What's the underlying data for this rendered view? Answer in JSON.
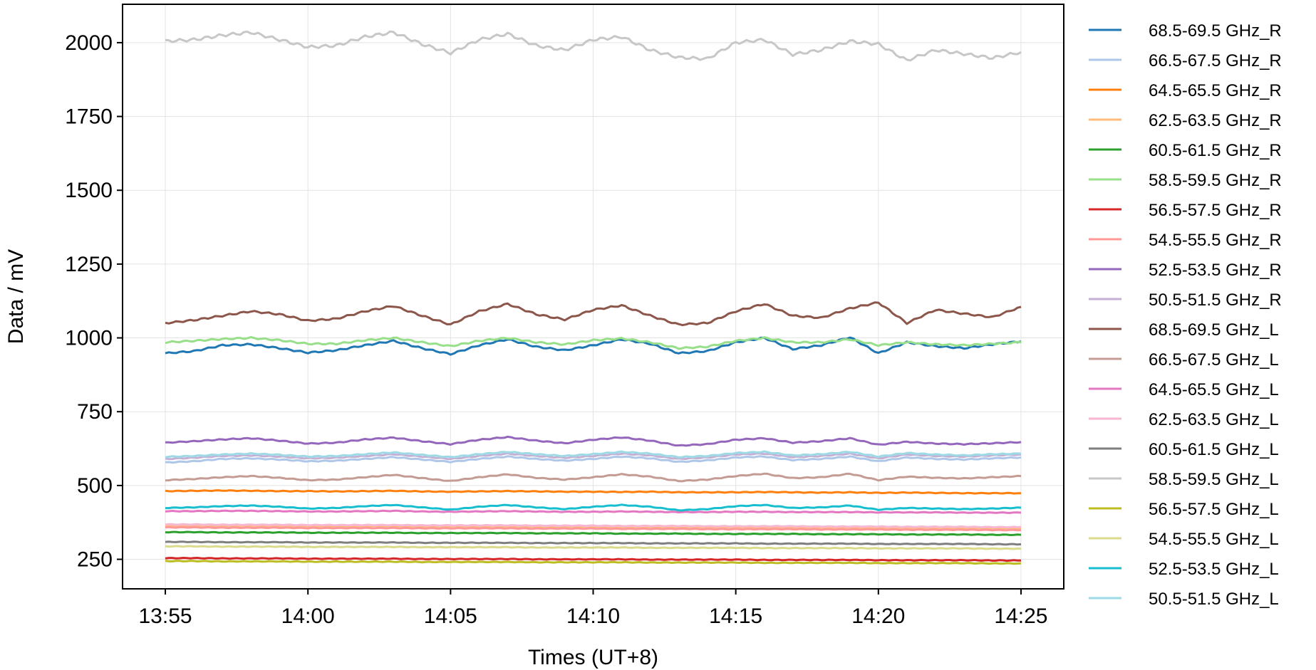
{
  "chart_data": {
    "type": "line",
    "xlabel": "Times (UT+8)",
    "ylabel": "Data / mV",
    "xlim": [
      "13:53:30",
      "14:26:30"
    ],
    "ylim": [
      150,
      2130
    ],
    "grid": true,
    "legend_position": "outside-right",
    "x_ticks": [
      "13:55",
      "14:00",
      "14:05",
      "14:10",
      "14:15",
      "14:20",
      "14:25"
    ],
    "y_ticks": [
      250,
      500,
      750,
      1000,
      1250,
      1500,
      1750,
      2000
    ],
    "x": [
      "13:55",
      "13:56",
      "13:57",
      "13:58",
      "13:59",
      "14:00",
      "14:01",
      "14:02",
      "14:03",
      "14:04",
      "14:05",
      "14:06",
      "14:07",
      "14:08",
      "14:09",
      "14:10",
      "14:11",
      "14:12",
      "14:13",
      "14:14",
      "14:15",
      "14:16",
      "14:17",
      "14:18",
      "14:19",
      "14:20",
      "14:21",
      "14:22",
      "14:23",
      "14:24",
      "14:25"
    ],
    "series": [
      {
        "name": "68.5-69.5 GHz_R",
        "color": "#1f77b4",
        "values": [
          948,
          955,
          975,
          978,
          965,
          950,
          958,
          975,
          990,
          965,
          945,
          975,
          995,
          970,
          958,
          975,
          995,
          980,
          948,
          955,
          985,
          1000,
          962,
          975,
          1002,
          948,
          985,
          972,
          965,
          978,
          988
        ]
      },
      {
        "name": "66.5-67.5 GHz_R",
        "color": "#aec7e8",
        "values": [
          578,
          582,
          590,
          592,
          588,
          582,
          584,
          590,
          596,
          588,
          580,
          590,
          598,
          590,
          584,
          590,
          598,
          592,
          580,
          585,
          595,
          598,
          586,
          590,
          598,
          582,
          595,
          590,
          588,
          592,
          595
        ]
      },
      {
        "name": "64.5-65.5 GHz_R",
        "color": "#ff7f0e",
        "values": [
          481,
          482,
          483,
          482,
          481,
          481,
          480,
          481,
          482,
          480,
          479,
          480,
          481,
          480,
          479,
          479,
          478,
          479,
          477,
          477,
          477,
          478,
          477,
          476,
          477,
          475,
          476,
          475,
          474,
          474,
          474
        ]
      },
      {
        "name": "62.5-63.5 GHz_R",
        "color": "#ffbb78",
        "values": [
          364,
          364,
          363,
          363,
          363,
          362,
          362,
          362,
          362,
          361,
          361,
          361,
          361,
          360,
          360,
          360,
          359,
          359,
          359,
          358,
          358,
          358,
          357,
          357,
          357,
          356,
          356,
          356,
          355,
          355,
          355
        ]
      },
      {
        "name": "60.5-61.5 GHz_R",
        "color": "#2ca02c",
        "values": [
          342,
          342,
          341,
          341,
          341,
          340,
          340,
          340,
          340,
          339,
          339,
          339,
          339,
          338,
          338,
          338,
          337,
          337,
          337,
          336,
          336,
          336,
          336,
          335,
          335,
          335,
          334,
          334,
          334,
          333,
          333
        ]
      },
      {
        "name": "58.5-59.5 GHz_R",
        "color": "#98df8a",
        "values": [
          985,
          990,
          996,
          1000,
          992,
          980,
          980,
          992,
          1000,
          985,
          972,
          990,
          1000,
          985,
          978,
          992,
          998,
          985,
          965,
          970,
          990,
          1000,
          985,
          985,
          995,
          975,
          985,
          978,
          975,
          980,
          985
        ]
      },
      {
        "name": "56.5-57.5 GHz_R",
        "color": "#d62728",
        "values": [
          254,
          254,
          253,
          253,
          253,
          252,
          252,
          252,
          252,
          251,
          251,
          251,
          251,
          250,
          250,
          250,
          250,
          249,
          249,
          249,
          249,
          248,
          248,
          248,
          248,
          247,
          247,
          247,
          247,
          246,
          246
        ]
      },
      {
        "name": "54.5-55.5 GHz_R",
        "color": "#ff9896",
        "values": [
          358,
          358,
          357,
          357,
          357,
          356,
          356,
          356,
          356,
          355,
          355,
          355,
          355,
          354,
          354,
          354,
          353,
          353,
          353,
          352,
          352,
          352,
          352,
          351,
          351,
          351,
          350,
          350,
          350,
          349,
          349
        ]
      },
      {
        "name": "52.5-53.5 GHz_R",
        "color": "#9467bd",
        "values": [
          645,
          650,
          656,
          660,
          652,
          642,
          645,
          656,
          662,
          650,
          640,
          655,
          664,
          652,
          643,
          655,
          663,
          652,
          635,
          640,
          655,
          660,
          645,
          650,
          660,
          638,
          648,
          642,
          640,
          643,
          647
        ]
      },
      {
        "name": "50.5-51.5 GHz_R",
        "color": "#c5b0d5",
        "values": [
          590,
          594,
          600,
          602,
          598,
          592,
          594,
          600,
          606,
          598,
          590,
          600,
          608,
          600,
          594,
          600,
          608,
          602,
          590,
          595,
          605,
          608,
          596,
          600,
          608,
          592,
          605,
          600,
          598,
          602,
          605
        ]
      },
      {
        "name": "68.5-69.5 GHz_L",
        "color": "#8c564b",
        "values": [
          1050,
          1060,
          1075,
          1090,
          1080,
          1058,
          1065,
          1090,
          1108,
          1075,
          1045,
          1090,
          1115,
          1080,
          1062,
          1095,
          1110,
          1075,
          1045,
          1050,
          1090,
          1115,
          1075,
          1068,
          1100,
          1120,
          1050,
          1095,
          1082,
          1070,
          1105
        ]
      },
      {
        "name": "66.5-67.5 GHz_L",
        "color": "#c49c94",
        "values": [
          518,
          522,
          528,
          532,
          526,
          518,
          520,
          528,
          536,
          525,
          515,
          528,
          538,
          526,
          520,
          528,
          538,
          530,
          515,
          520,
          532,
          540,
          525,
          528,
          540,
          518,
          530,
          526,
          524,
          528,
          532
        ]
      },
      {
        "name": "64.5-65.5 GHz_L",
        "color": "#e377c2",
        "values": [
          413,
          413,
          414,
          414,
          413,
          412,
          412,
          413,
          414,
          412,
          411,
          412,
          413,
          412,
          411,
          411,
          412,
          411,
          410,
          410,
          411,
          411,
          410,
          410,
          410,
          409,
          409,
          409,
          408,
          408,
          408
        ]
      },
      {
        "name": "62.5-63.5 GHz_L",
        "color": "#f7b6d2",
        "values": [
          368,
          368,
          367,
          367,
          367,
          366,
          366,
          366,
          366,
          365,
          365,
          365,
          365,
          364,
          364,
          364,
          363,
          363,
          363,
          362,
          362,
          362,
          362,
          361,
          361,
          361,
          360,
          360,
          360,
          359,
          359
        ]
      },
      {
        "name": "60.5-61.5 GHz_L",
        "color": "#7f7f7f",
        "values": [
          309,
          309,
          308,
          308,
          308,
          307,
          307,
          307,
          307,
          306,
          306,
          306,
          306,
          305,
          305,
          305,
          305,
          304,
          304,
          304,
          304,
          303,
          303,
          303,
          303,
          302,
          302,
          302,
          302,
          301,
          301
        ]
      },
      {
        "name": "58.5-59.5 GHz_L",
        "color": "#c7c7c7",
        "values": [
          2005,
          2010,
          2025,
          2035,
          2010,
          1985,
          1990,
          2020,
          2035,
          1995,
          1965,
          2010,
          2030,
          1990,
          1975,
          2010,
          2020,
          1975,
          1950,
          1945,
          2000,
          2010,
          1960,
          1975,
          2005,
          1995,
          1940,
          1975,
          1962,
          1948,
          1968
        ]
      },
      {
        "name": "56.5-57.5 GHz_L",
        "color": "#bcbd22",
        "values": [
          244,
          244,
          243,
          243,
          243,
          242,
          242,
          242,
          242,
          241,
          241,
          241,
          241,
          240,
          240,
          240,
          240,
          239,
          239,
          239,
          239,
          238,
          238,
          238,
          238,
          237,
          237,
          237,
          237,
          236,
          236
        ]
      },
      {
        "name": "54.5-55.5 GHz_L",
        "color": "#dbdb8d",
        "values": [
          294,
          294,
          293,
          293,
          293,
          292,
          292,
          292,
          292,
          291,
          291,
          291,
          291,
          290,
          290,
          290,
          290,
          289,
          289,
          289,
          289,
          288,
          288,
          288,
          288,
          287,
          287,
          287,
          287,
          286,
          286
        ]
      },
      {
        "name": "52.5-53.5 GHz_L",
        "color": "#17becf",
        "values": [
          424,
          426,
          430,
          432,
          428,
          422,
          424,
          430,
          434,
          426,
          418,
          428,
          434,
          426,
          420,
          428,
          434,
          428,
          416,
          420,
          430,
          434,
          424,
          426,
          432,
          418,
          424,
          422,
          420,
          422,
          425
        ]
      },
      {
        "name": "50.5-51.5 GHz_L",
        "color": "#9edae5",
        "values": [
          597,
          600,
          605,
          608,
          604,
          598,
          600,
          606,
          612,
          604,
          596,
          606,
          614,
          606,
          600,
          606,
          614,
          608,
          596,
          600,
          610,
          614,
          602,
          606,
          614,
          598,
          610,
          605,
          602,
          606,
          608
        ]
      }
    ]
  }
}
